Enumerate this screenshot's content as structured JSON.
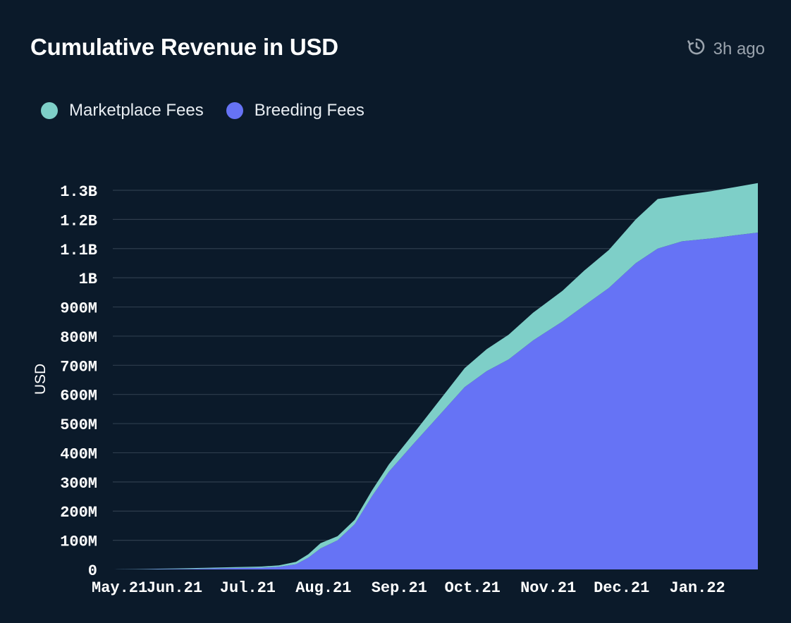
{
  "header": {
    "title": "Cumulative Revenue in USD",
    "updated": "3h ago"
  },
  "chart_data": {
    "type": "area",
    "stacked": true,
    "title": "Cumulative Revenue in USD",
    "xlabel": "",
    "ylabel": "USD",
    "ylim": [
      0,
      1300000000
    ],
    "grid": true,
    "legend_position": "top-left",
    "x_ticks": [
      "May.21",
      "Jun.21",
      "Jul.21",
      "Aug.21",
      "Sep.21",
      "Oct.21",
      "Nov.21",
      "Dec.21",
      "Jan.22"
    ],
    "y_ticks": [
      {
        "value": 0,
        "label": "0"
      },
      {
        "value": 100000000,
        "label": "100M"
      },
      {
        "value": 200000000,
        "label": "200M"
      },
      {
        "value": 300000000,
        "label": "300M"
      },
      {
        "value": 400000000,
        "label": "400M"
      },
      {
        "value": 500000000,
        "label": "500M"
      },
      {
        "value": 600000000,
        "label": "600M"
      },
      {
        "value": 700000000,
        "label": "700M"
      },
      {
        "value": 800000000,
        "label": "800M"
      },
      {
        "value": 900000000,
        "label": "900M"
      },
      {
        "value": 1000000000,
        "label": "1B"
      },
      {
        "value": 1100000000,
        "label": "1.1B"
      },
      {
        "value": 1200000000,
        "label": "1.2B"
      },
      {
        "value": 1300000000,
        "label": "1.3B"
      }
    ],
    "x": [
      "2021-05-01",
      "2021-05-15",
      "2021-06-01",
      "2021-06-15",
      "2021-07-01",
      "2021-07-08",
      "2021-07-15",
      "2021-07-20",
      "2021-07-25",
      "2021-08-01",
      "2021-08-08",
      "2021-08-15",
      "2021-08-22",
      "2021-09-01",
      "2021-09-08",
      "2021-09-15",
      "2021-09-22",
      "2021-10-01",
      "2021-10-10",
      "2021-10-20",
      "2021-11-01",
      "2021-11-10",
      "2021-11-20",
      "2021-12-01",
      "2021-12-10",
      "2021-12-20",
      "2022-01-01",
      "2022-01-10",
      "2022-01-20"
    ],
    "series": [
      {
        "name": "Breeding Fees",
        "color": "#6673f5",
        "values": [
          0,
          1000000,
          2000000,
          4000000,
          6000000,
          9000000,
          18000000,
          40000000,
          72000000,
          100000000,
          155000000,
          250000000,
          335000000,
          430000000,
          495000000,
          560000000,
          625000000,
          680000000,
          720000000,
          785000000,
          850000000,
          905000000,
          965000000,
          1050000000,
          1100000000,
          1125000000,
          1135000000,
          1145000000,
          1155000000
        ]
      },
      {
        "name": "Marketplace Fees",
        "color": "#7ecfc8",
        "values": [
          0,
          1000000,
          2000000,
          3000000,
          4000000,
          5000000,
          8000000,
          12000000,
          18000000,
          14000000,
          15000000,
          20000000,
          25000000,
          35000000,
          45000000,
          55000000,
          65000000,
          75000000,
          85000000,
          95000000,
          105000000,
          120000000,
          130000000,
          150000000,
          170000000,
          158000000,
          162000000,
          165000000,
          170000000
        ]
      }
    ]
  }
}
